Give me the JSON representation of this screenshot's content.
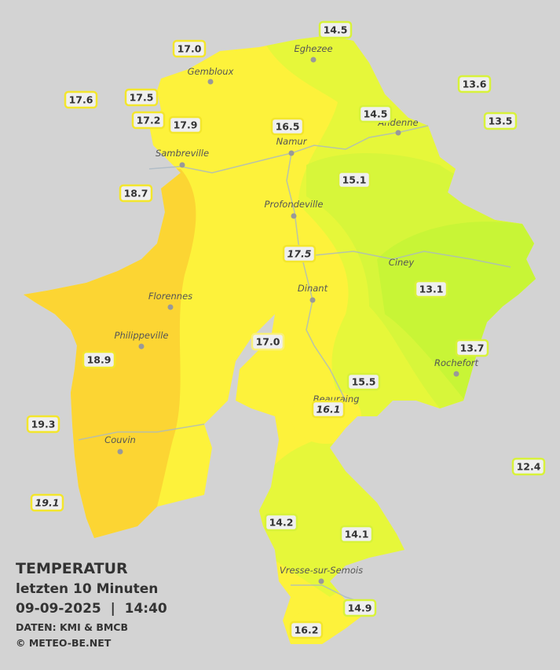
{
  "title": {
    "heading": "TEMPERATUR",
    "subtitle": "letzten 10 Minuten",
    "datetime": "09-09-2025  |  14:40",
    "source": "DATEN: KMI & BMCB",
    "credit": "© METEO-BE.NET"
  },
  "towns": [
    "Eghezee",
    "Gembloux",
    "Andenne",
    "Namur",
    "Sambreville",
    "Profondeville",
    "Ciney",
    "Dinant",
    "Florennes",
    "Philippeville",
    "Rochefort",
    "Beauraing",
    "Couvin",
    "Vresse-sur-Semois"
  ],
  "stations": [
    "17.0",
    "14.5",
    "13.6",
    "17.6",
    "17.5",
    "17.2",
    "17.9",
    "16.5",
    "14.5",
    "13.5",
    "18.7",
    "15.1",
    "17.5",
    "13.1",
    "17.0",
    "13.7",
    "18.9",
    "15.5",
    "16.1",
    "19.3",
    "12.4",
    "19.1",
    "14.2",
    "14.1",
    "14.9",
    "16.2"
  ]
}
